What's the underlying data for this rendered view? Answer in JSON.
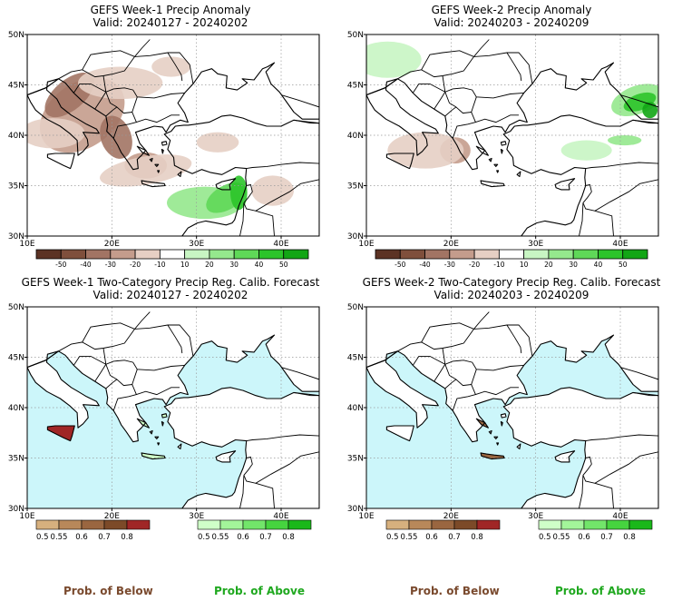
{
  "panels": [
    {
      "id": "week1-anomaly",
      "title": "GEFS Week-1 Precip Anomaly",
      "valid": "Valid: 20240127 - 20240202",
      "type": "anomaly",
      "x_ticks": [
        "10E",
        "20E",
        "30E",
        "40E"
      ],
      "y_ticks": [
        "50N",
        "45N",
        "40N",
        "35N",
        "30N"
      ]
    },
    {
      "id": "week2-anomaly",
      "title": "GEFS Week-2 Precip Anomaly",
      "valid": "Valid: 20240203 - 20240209",
      "type": "anomaly",
      "x_ticks": [
        "10E",
        "20E",
        "30E",
        "40E"
      ],
      "y_ticks": [
        "50N",
        "45N",
        "40N",
        "35N",
        "30N"
      ]
    },
    {
      "id": "week1-prob",
      "title": "GEFS Week-1 Two-Category Precip Reg. Calib. Forecast",
      "valid": "Valid: 20240127 - 20240202",
      "type": "probability",
      "x_ticks": [
        "10E",
        "20E",
        "30E",
        "40E"
      ],
      "y_ticks": [
        "50N",
        "45N",
        "40N",
        "35N",
        "30N"
      ]
    },
    {
      "id": "week2-prob",
      "title": "GEFS Week-2 Two-Category Precip Reg. Calib. Forecast",
      "valid": "Valid: 20240203 - 20240209",
      "type": "probability",
      "x_ticks": [
        "10E",
        "20E",
        "30E",
        "40E"
      ],
      "y_ticks": [
        "50N",
        "45N",
        "40N",
        "35N",
        "30N"
      ]
    }
  ],
  "anomaly_legend": {
    "labels": [
      "-50",
      "-40",
      "-30",
      "-20",
      "-10",
      "10",
      "20",
      "30",
      "40",
      "50"
    ],
    "colors": [
      "#5c3324",
      "#7f4f3c",
      "#a27464",
      "#c49c8c",
      "#e6cfc4",
      "#ffffff",
      "#c8f5c3",
      "#95e88d",
      "#5fd858",
      "#2cc42a",
      "#12a615"
    ]
  },
  "prob_below_legend": {
    "labels": [
      "0.5",
      "0.55",
      "0.6",
      "0.7",
      "0.8"
    ],
    "colors": [
      "#d6b07e",
      "#b8885a",
      "#9a6640",
      "#7c4a28",
      "#a02626"
    ]
  },
  "prob_above_legend": {
    "labels": [
      "0.5",
      "0.55",
      "0.6",
      "0.7",
      "0.8"
    ],
    "colors": [
      "#cfffc8",
      "#a3f59a",
      "#72e56a",
      "#46d43f",
      "#1ab81a"
    ]
  },
  "footer": {
    "below_label": "Prob. of Below",
    "above_label": "Prob. of Above"
  },
  "map_colors": {
    "sea": "#ccf6fa",
    "land_neutral": "#ffffff",
    "no_data": "#e6e6e6",
    "grid": "#999999"
  }
}
